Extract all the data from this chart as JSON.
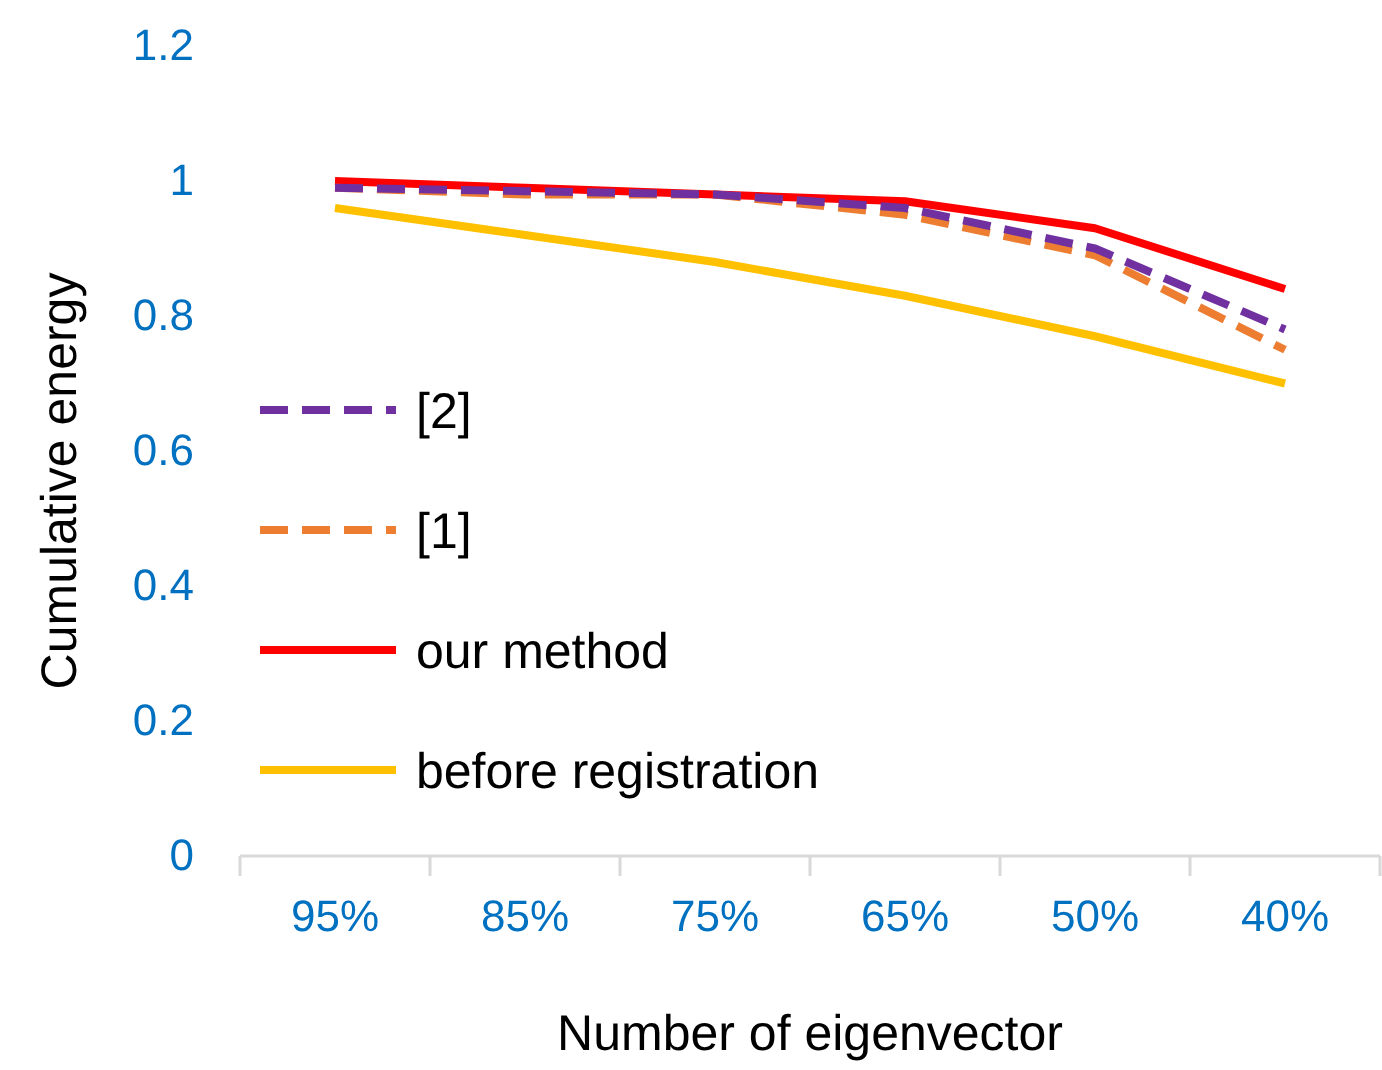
{
  "chart_data": {
    "type": "line",
    "xlabel": "Number of eigenvector",
    "ylabel": "Cumulative energy",
    "categories": [
      "95%",
      "85%",
      "75%",
      "65%",
      "50%",
      "40%"
    ],
    "series": [
      {
        "name": "[2]",
        "color": "#7030a0",
        "line_style": "dashed",
        "values": [
          0.99,
          0.985,
          0.98,
          0.96,
          0.9,
          0.78
        ]
      },
      {
        "name": "[1]",
        "color": "#ed7d31",
        "line_style": "dashed",
        "values": [
          0.99,
          0.98,
          0.98,
          0.95,
          0.89,
          0.75
        ]
      },
      {
        "name": "our method",
        "color": "#ff0000",
        "line_style": "solid",
        "values": [
          1.0,
          0.99,
          0.98,
          0.97,
          0.93,
          0.84
        ]
      },
      {
        "name": "before registration",
        "color": "#ffc000",
        "line_style": "solid",
        "values": [
          0.96,
          0.92,
          0.88,
          0.83,
          0.77,
          0.7
        ]
      }
    ],
    "ylim": [
      0,
      1.2
    ],
    "yticks": [
      0,
      0.2,
      0.4,
      0.6,
      0.8,
      1,
      1.2
    ],
    "grid": false,
    "legend": "left",
    "marker": "none"
  }
}
